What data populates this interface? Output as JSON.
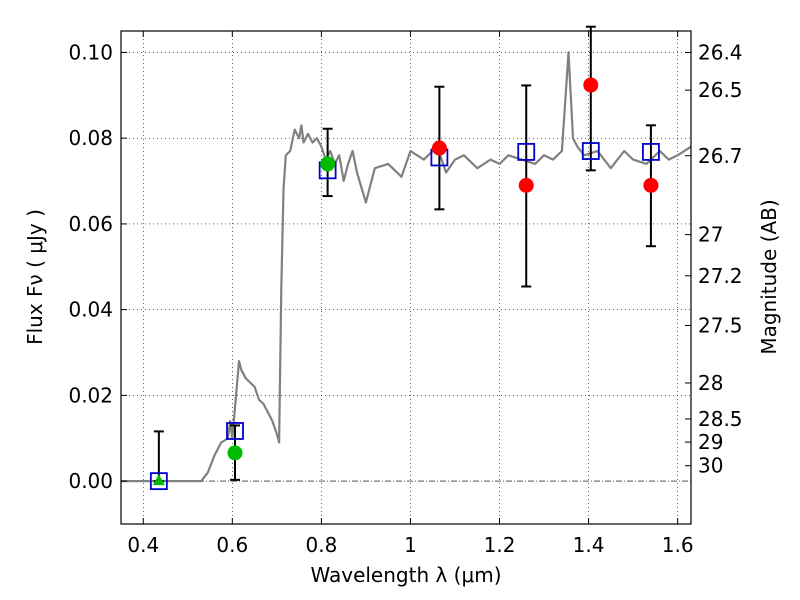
{
  "chart_data": {
    "type": "scatter",
    "xlabel": "Wavelength  λ (μm)",
    "ylabel": "Flux  Fν  ( μJy )",
    "y2label": "Magnitude (AB)",
    "xlim": [
      0.35,
      1.63
    ],
    "ylim": [
      -0.01,
      0.105
    ],
    "x_ticks": [
      0.4,
      0.6,
      0.8,
      1.0,
      1.2,
      1.4,
      1.6
    ],
    "x_tick_labels": [
      "0.4",
      "0.6",
      "0.8",
      "1",
      "1.2",
      "1.4",
      "1.6"
    ],
    "y_ticks": [
      0.0,
      0.02,
      0.04,
      0.06,
      0.08,
      0.1
    ],
    "y_tick_labels": [
      "0.00",
      "0.02",
      "0.04",
      "0.06",
      "0.08",
      "0.10"
    ],
    "mag_ticks": [
      {
        "label": "26.4",
        "flux": 0.1
      },
      {
        "label": "26.5",
        "flux": 0.0912
      },
      {
        "label": "26.7",
        "flux": 0.0759
      },
      {
        "label": "27",
        "flux": 0.0575
      },
      {
        "label": "27.2",
        "flux": 0.0479
      },
      {
        "label": "27.5",
        "flux": 0.0363
      },
      {
        "label": "28",
        "flux": 0.0229
      },
      {
        "label": "28.5",
        "flux": 0.0145
      },
      {
        "label": "29",
        "flux": 0.0091
      },
      {
        "label": "30",
        "flux": 0.0036
      }
    ],
    "grid": true,
    "colors": {
      "spectrum": "#808080",
      "model": "#0000cc",
      "detection": "#ff0000",
      "detection_green": "#00bb00",
      "errorbar": "#000000"
    },
    "model_spectrum": {
      "x": [
        0.35,
        0.53,
        0.545,
        0.56,
        0.575,
        0.59,
        0.595,
        0.6,
        0.61,
        0.615,
        0.62,
        0.63,
        0.64,
        0.65,
        0.66,
        0.67,
        0.68,
        0.69,
        0.7,
        0.705,
        0.71,
        0.715,
        0.72,
        0.73,
        0.74,
        0.75,
        0.755,
        0.76,
        0.77,
        0.78,
        0.79,
        0.8,
        0.81,
        0.82,
        0.83,
        0.84,
        0.85,
        0.86,
        0.87,
        0.88,
        0.9,
        0.92,
        0.95,
        0.98,
        1.0,
        1.03,
        1.06,
        1.08,
        1.1,
        1.12,
        1.15,
        1.18,
        1.2,
        1.22,
        1.25,
        1.28,
        1.3,
        1.32,
        1.34,
        1.355,
        1.365,
        1.375,
        1.39,
        1.42,
        1.45,
        1.48,
        1.5,
        1.53,
        1.56,
        1.58,
        1.6,
        1.63
      ],
      "y": [
        0.0,
        0.0,
        0.002,
        0.006,
        0.009,
        0.01,
        0.014,
        0.01,
        0.022,
        0.028,
        0.026,
        0.024,
        0.023,
        0.022,
        0.019,
        0.018,
        0.016,
        0.014,
        0.011,
        0.009,
        0.045,
        0.068,
        0.076,
        0.077,
        0.082,
        0.08,
        0.083,
        0.079,
        0.081,
        0.079,
        0.08,
        0.078,
        0.075,
        0.077,
        0.074,
        0.076,
        0.07,
        0.074,
        0.077,
        0.072,
        0.065,
        0.073,
        0.074,
        0.071,
        0.077,
        0.075,
        0.078,
        0.072,
        0.075,
        0.076,
        0.073,
        0.075,
        0.074,
        0.076,
        0.075,
        0.074,
        0.076,
        0.075,
        0.077,
        0.1,
        0.08,
        0.078,
        0.076,
        0.077,
        0.073,
        0.077,
        0.075,
        0.074,
        0.077,
        0.075,
        0.076,
        0.078
      ]
    },
    "model_photometry": [
      {
        "x": 0.435,
        "y": 0.0
      },
      {
        "x": 0.606,
        "y": 0.0117
      },
      {
        "x": 0.814,
        "y": 0.0725
      },
      {
        "x": 1.065,
        "y": 0.0755
      },
      {
        "x": 1.26,
        "y": 0.0768
      },
      {
        "x": 1.405,
        "y": 0.077
      },
      {
        "x": 1.54,
        "y": 0.0768
      }
    ],
    "observed": [
      {
        "x": 0.435,
        "y": 0.0,
        "yerr_low": 0.0,
        "yerr_high": 0.0116,
        "marker": "triangle",
        "color": "green"
      },
      {
        "x": 0.606,
        "y": 0.0066,
        "yerr_low": 0.0063,
        "yerr_high": 0.0064,
        "marker": "circle",
        "color": "green"
      },
      {
        "x": 0.814,
        "y": 0.074,
        "yerr_low": 0.0075,
        "yerr_high": 0.0082,
        "marker": "circle",
        "color": "green"
      },
      {
        "x": 1.065,
        "y": 0.0777,
        "yerr_low": 0.0143,
        "yerr_high": 0.0143,
        "marker": "circle",
        "color": "red"
      },
      {
        "x": 1.26,
        "y": 0.069,
        "yerr_low": 0.0236,
        "yerr_high": 0.0233,
        "marker": "circle",
        "color": "red"
      },
      {
        "x": 1.405,
        "y": 0.0924,
        "yerr_low": 0.0199,
        "yerr_high": 0.0136,
        "marker": "circle",
        "color": "red"
      },
      {
        "x": 1.54,
        "y": 0.069,
        "yerr_low": 0.0142,
        "yerr_high": 0.014,
        "marker": "circle",
        "color": "red"
      }
    ]
  }
}
